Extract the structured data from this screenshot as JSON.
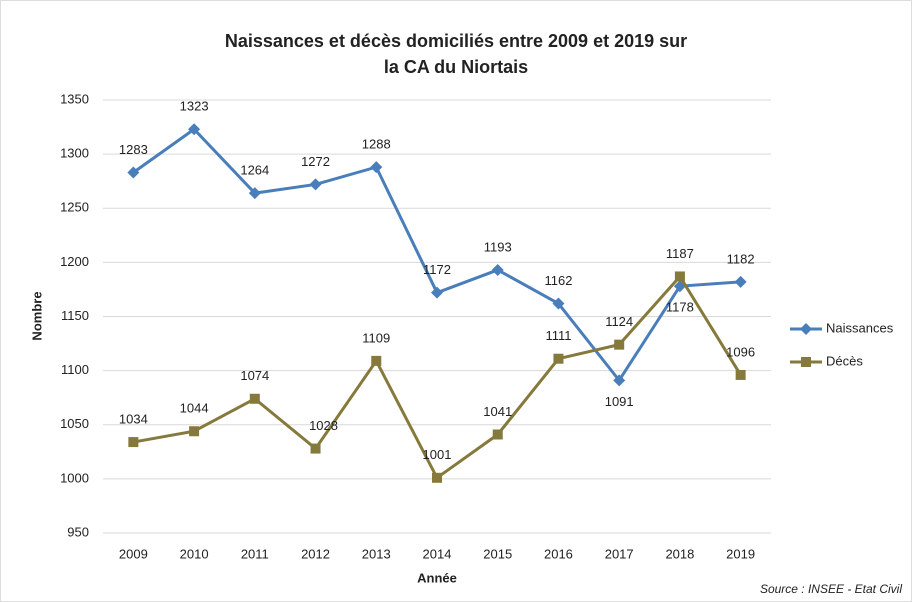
{
  "chart_data": {
    "type": "line",
    "title": [
      "Naissances et décès domiciliés entre 2009 et 2019 sur",
      "la CA du Niortais"
    ],
    "x_label": "Année",
    "y_label": "Nombre",
    "source": "Source : INSEE - Etat Civil",
    "categories": [
      "2009",
      "2010",
      "2011",
      "2012",
      "2013",
      "2014",
      "2015",
      "2016",
      "2017",
      "2018",
      "2019"
    ],
    "series": [
      {
        "name": "Naissances",
        "color": "#4a7ebb",
        "marker": "diamond",
        "values": [
          1283,
          1323,
          1264,
          1272,
          1288,
          1172,
          1193,
          1162,
          1091,
          1178,
          1182
        ]
      },
      {
        "name": "Décès",
        "color": "#857a3b",
        "marker": "square",
        "values": [
          1034,
          1044,
          1074,
          1028,
          1109,
          1001,
          1041,
          1111,
          1124,
          1187,
          1096
        ]
      }
    ],
    "ylim": [
      950,
      1350
    ],
    "yticks": [
      950,
      1000,
      1050,
      1100,
      1150,
      1200,
      1250,
      1300,
      1350
    ],
    "grid": true,
    "legend": "right"
  }
}
